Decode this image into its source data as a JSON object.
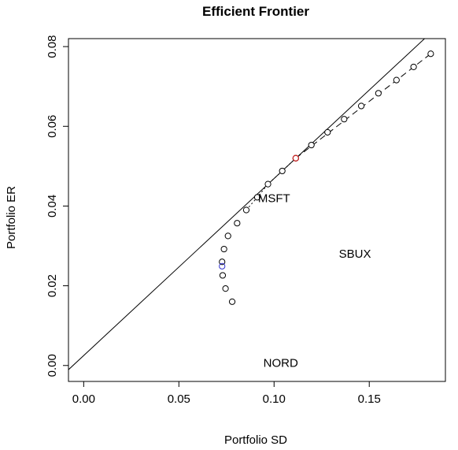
{
  "chart_data": {
    "type": "scatter",
    "title": "Efficient Frontier",
    "xlabel": "Portfolio SD",
    "ylabel": "Portfolio ER",
    "xlim": [
      -0.008,
      0.19
    ],
    "ylim": [
      -0.004,
      0.082
    ],
    "x_ticks": [
      {
        "value": 0.0,
        "label": "0.00"
      },
      {
        "value": 0.05,
        "label": "0.05"
      },
      {
        "value": 0.1,
        "label": "0.10"
      },
      {
        "value": 0.15,
        "label": "0.15"
      }
    ],
    "y_ticks": [
      {
        "value": 0.0,
        "label": "0.00"
      },
      {
        "value": 0.02,
        "label": "0.02"
      },
      {
        "value": 0.04,
        "label": "0.04"
      },
      {
        "value": 0.06,
        "label": "0.06"
      },
      {
        "value": 0.08,
        "label": "0.08"
      }
    ],
    "frontier_points": [
      {
        "x": 0.078,
        "y": 0.016
      },
      {
        "x": 0.0745,
        "y": 0.0193
      },
      {
        "x": 0.073,
        "y": 0.0226
      },
      {
        "x": 0.0727,
        "y": 0.026
      },
      {
        "x": 0.0737,
        "y": 0.0292
      },
      {
        "x": 0.0758,
        "y": 0.0325
      },
      {
        "x": 0.0806,
        "y": 0.0357
      },
      {
        "x": 0.0854,
        "y": 0.039
      },
      {
        "x": 0.0912,
        "y": 0.0422
      },
      {
        "x": 0.0968,
        "y": 0.0455
      },
      {
        "x": 0.1043,
        "y": 0.0488
      },
      {
        "x": 0.1114,
        "y": 0.052
      },
      {
        "x": 0.1196,
        "y": 0.0553
      },
      {
        "x": 0.1281,
        "y": 0.0585
      },
      {
        "x": 0.1368,
        "y": 0.0618
      },
      {
        "x": 0.1458,
        "y": 0.0651
      },
      {
        "x": 0.1548,
        "y": 0.0683
      },
      {
        "x": 0.1643,
        "y": 0.0716
      },
      {
        "x": 0.1733,
        "y": 0.0749
      },
      {
        "x": 0.1823,
        "y": 0.0782
      }
    ],
    "global_min_portfolio": {
      "x": 0.0727,
      "y": 0.0249,
      "color": "#3333cc"
    },
    "tangency_portfolio": {
      "x": 0.1114,
      "y": 0.052,
      "color": "#cc2222"
    },
    "capital_market_line": {
      "intercept": 0.0025,
      "slope": 0.444
    },
    "tangent_dashed_segment": {
      "from": [
        0.1114,
        0.052
      ],
      "to": [
        0.1823,
        0.0782
      ]
    },
    "assets": [
      {
        "label": "MSFT",
        "x": 0.1,
        "y": 0.042
      },
      {
        "label": "SBUX",
        "x": 0.1425,
        "y": 0.028
      },
      {
        "label": "NORD",
        "x": 0.1035,
        "y": 0.0006
      }
    ],
    "grid": false,
    "legend": "none"
  }
}
